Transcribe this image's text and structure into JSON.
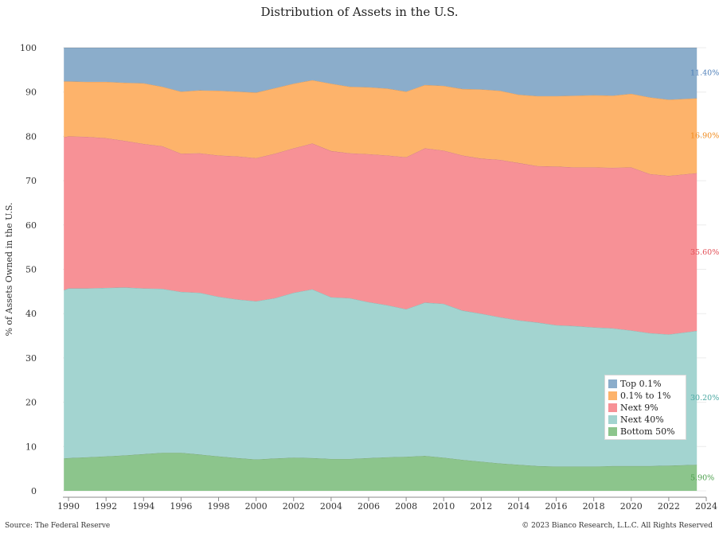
{
  "title": "Distribution of Assets in the U.S.",
  "footer": {
    "source": "Source: The Federal Reserve",
    "copyright": "© 2023 Bianco Research, L.L.C. All Rights Reserved"
  },
  "chart_data": {
    "type": "area",
    "stacked": true,
    "title": "Distribution of Assets in the U.S.",
    "xlabel": "",
    "ylabel": "% of Assets Owned in the U.S.",
    "xlim": [
      1989.7,
      2024
    ],
    "ylim": [
      0,
      100
    ],
    "x_ticks": [
      1990,
      1992,
      1994,
      1996,
      1998,
      2000,
      2002,
      2004,
      2006,
      2008,
      2010,
      2012,
      2014,
      2016,
      2018,
      2020,
      2022,
      2024
    ],
    "y_ticks": [
      0,
      10,
      20,
      30,
      40,
      50,
      60,
      70,
      80,
      90,
      100
    ],
    "grid": "horizontal",
    "legend_position": "bottom-right",
    "x": [
      1989.75,
      1990,
      1991,
      1992,
      1993,
      1994,
      1995,
      1996,
      1997,
      1998,
      1999,
      2000,
      2001,
      2002,
      2003,
      2004,
      2005,
      2006,
      2007,
      2008,
      2009,
      2010,
      2011,
      2012,
      2013,
      2014,
      2015,
      2016,
      2017,
      2018,
      2019,
      2020,
      2021,
      2022,
      2023.5
    ],
    "series": [
      {
        "name": "Bottom 50%",
        "color": "#8cc58c",
        "values": [
          7.3,
          7.4,
          7.6,
          7.8,
          8.0,
          8.3,
          8.6,
          8.6,
          8.2,
          7.8,
          7.4,
          7.1,
          7.3,
          7.5,
          7.4,
          7.2,
          7.2,
          7.4,
          7.6,
          7.7,
          7.9,
          7.5,
          7.0,
          6.6,
          6.2,
          5.9,
          5.6,
          5.5,
          5.5,
          5.5,
          5.6,
          5.6,
          5.6,
          5.7,
          5.9
        ]
      },
      {
        "name": "Next 40%",
        "color": "#a3d4d0",
        "values": [
          38.0,
          38.3,
          38.1,
          38.0,
          37.9,
          37.4,
          37.0,
          36.3,
          36.5,
          36.0,
          35.8,
          35.7,
          36.2,
          37.2,
          38.1,
          36.5,
          36.3,
          35.2,
          34.3,
          33.3,
          34.6,
          34.7,
          33.7,
          33.4,
          33.0,
          32.6,
          32.4,
          31.9,
          31.7,
          31.4,
          31.1,
          30.6,
          30.0,
          29.6,
          30.2
        ]
      },
      {
        "name": "Next 9%",
        "color": "#f79196",
        "values": [
          34.5,
          34.3,
          34.2,
          33.8,
          33.1,
          32.6,
          32.2,
          31.2,
          31.5,
          31.9,
          32.3,
          32.3,
          32.6,
          32.6,
          32.9,
          33.0,
          32.7,
          33.4,
          33.8,
          34.3,
          34.8,
          34.6,
          35.0,
          35.0,
          35.5,
          35.5,
          35.3,
          35.8,
          35.8,
          36.1,
          36.2,
          36.8,
          35.9,
          35.8,
          35.6
        ]
      },
      {
        "name": "0.1% to 1%",
        "color": "#fdb36b",
        "values": [
          12.6,
          12.4,
          12.4,
          12.7,
          13.1,
          13.7,
          13.4,
          14.0,
          14.2,
          14.6,
          14.6,
          14.8,
          14.8,
          14.6,
          14.3,
          15.2,
          15.0,
          15.1,
          15.1,
          14.8,
          14.3,
          14.6,
          15.0,
          15.6,
          15.6,
          15.4,
          15.8,
          15.9,
          16.2,
          16.3,
          16.3,
          16.6,
          17.3,
          17.2,
          16.9
        ]
      },
      {
        "name": "Top 0.1%",
        "color": "#8badcb",
        "values": [
          7.6,
          7.6,
          7.7,
          7.7,
          7.9,
          8.0,
          8.8,
          9.9,
          9.6,
          9.7,
          9.9,
          10.1,
          9.1,
          8.1,
          7.3,
          8.1,
          8.8,
          8.9,
          9.2,
          9.9,
          8.4,
          8.6,
          9.3,
          9.4,
          9.7,
          10.6,
          10.9,
          10.9,
          10.8,
          10.7,
          10.8,
          10.4,
          11.2,
          11.7,
          11.4
        ]
      }
    ],
    "end_labels": [
      {
        "series": "Top 0.1%",
        "text": "11.40%",
        "color": "#4d7eb8"
      },
      {
        "series": "0.1% to 1%",
        "text": "16.90%",
        "color": "#f08a1c"
      },
      {
        "series": "Next 9%",
        "text": "35.60%",
        "color": "#e24d55"
      },
      {
        "series": "Next 40%",
        "text": "30.20%",
        "color": "#4aa8a2"
      },
      {
        "series": "Bottom 50%",
        "text": "5.90%",
        "color": "#4a9e4a"
      }
    ],
    "legend_order": [
      "Top 0.1%",
      "0.1% to 1%",
      "Next 9%",
      "Next 40%",
      "Bottom 50%"
    ]
  }
}
